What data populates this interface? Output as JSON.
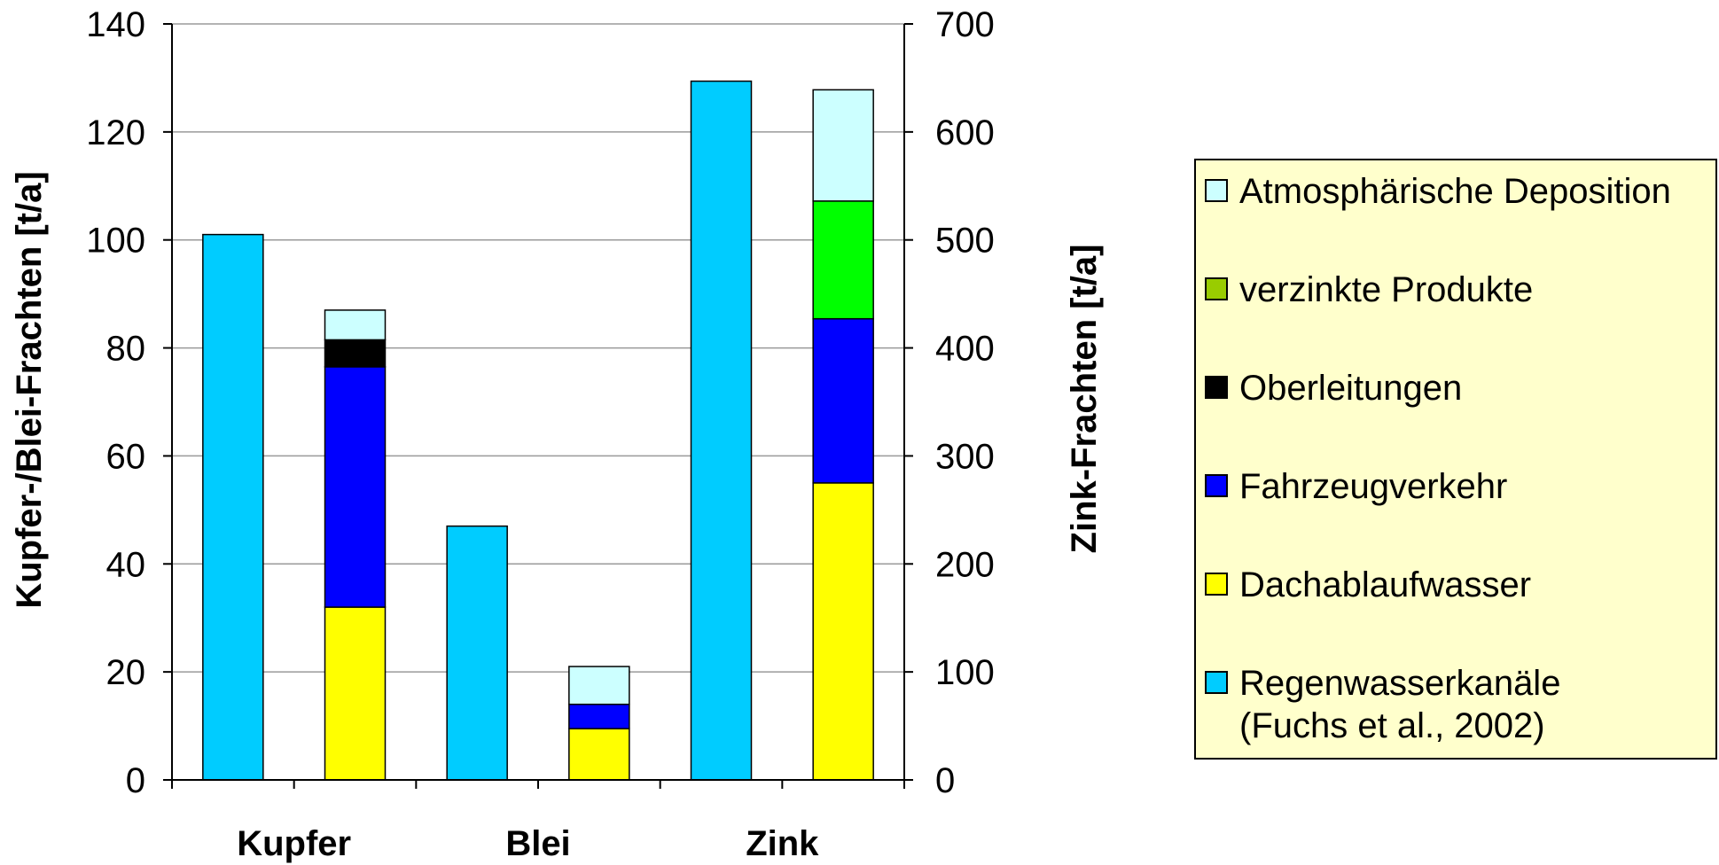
{
  "chart_data": {
    "type": "bar",
    "stacked": true,
    "categories": [
      "Kupfer",
      "Blei",
      "Zink"
    ],
    "ylabel_left": "Kupfer-/Blei-Frachten [t/a]",
    "ylabel_right": "Zink-Frachten [t/a]",
    "ylim_left": [
      0,
      140
    ],
    "ylim_right": [
      0,
      700
    ],
    "left_ticks": [
      "0",
      "20",
      "40",
      "60",
      "80",
      "100",
      "120",
      "140"
    ],
    "right_ticks": [
      "0",
      "100",
      "200",
      "300",
      "400",
      "500",
      "600",
      "700"
    ],
    "grid": true,
    "legend_position": "right",
    "series": [
      {
        "name": "Atmosphärische Deposition",
        "color": "#CCFFFF"
      },
      {
        "name": "verzinkte Produkte",
        "color": "#00FF00",
        "legend_color": "#99CC00"
      },
      {
        "name": "Oberleitungen",
        "color": "#000000"
      },
      {
        "name": "Fahrzeugverkehr",
        "color": "#0000FF"
      },
      {
        "name": "Dachablaufwasser",
        "color": "#FFFF00"
      },
      {
        "name": "Regenwasserkanäle",
        "name_line2": "(Fuchs et al., 2002)",
        "color": "#00CCFF"
      }
    ],
    "bars": [
      {
        "category": "Kupfer",
        "axis": "left",
        "segments": [
          {
            "series": "Regenwasserkanäle",
            "value": 101
          }
        ]
      },
      {
        "category": "Kupfer",
        "axis": "left",
        "segments": [
          {
            "series": "Dachablaufwasser",
            "value": 32
          },
          {
            "series": "Fahrzeugverkehr",
            "value": 44.5
          },
          {
            "series": "Oberleitungen",
            "value": 5
          },
          {
            "series": "Atmosphärische Deposition",
            "value": 5.5
          }
        ]
      },
      {
        "category": "Blei",
        "axis": "left",
        "segments": [
          {
            "series": "Regenwasserkanäle",
            "value": 47
          }
        ]
      },
      {
        "category": "Blei",
        "axis": "left",
        "segments": [
          {
            "series": "Dachablaufwasser",
            "value": 9.5
          },
          {
            "series": "Fahrzeugverkehr",
            "value": 4.5
          },
          {
            "series": "Atmosphärische Deposition",
            "value": 7
          }
        ]
      },
      {
        "category": "Zink",
        "axis": "right",
        "segments": [
          {
            "series": "Regenwasserkanäle",
            "value": 647
          }
        ]
      },
      {
        "category": "Zink",
        "axis": "right",
        "segments": [
          {
            "series": "Dachablaufwasser",
            "value": 275
          },
          {
            "series": "Fahrzeugverkehr",
            "value": 152
          },
          {
            "series": "verzinkte Produkte",
            "value": 109
          },
          {
            "series": "Atmosphärische Deposition",
            "value": 103
          }
        ]
      }
    ]
  }
}
